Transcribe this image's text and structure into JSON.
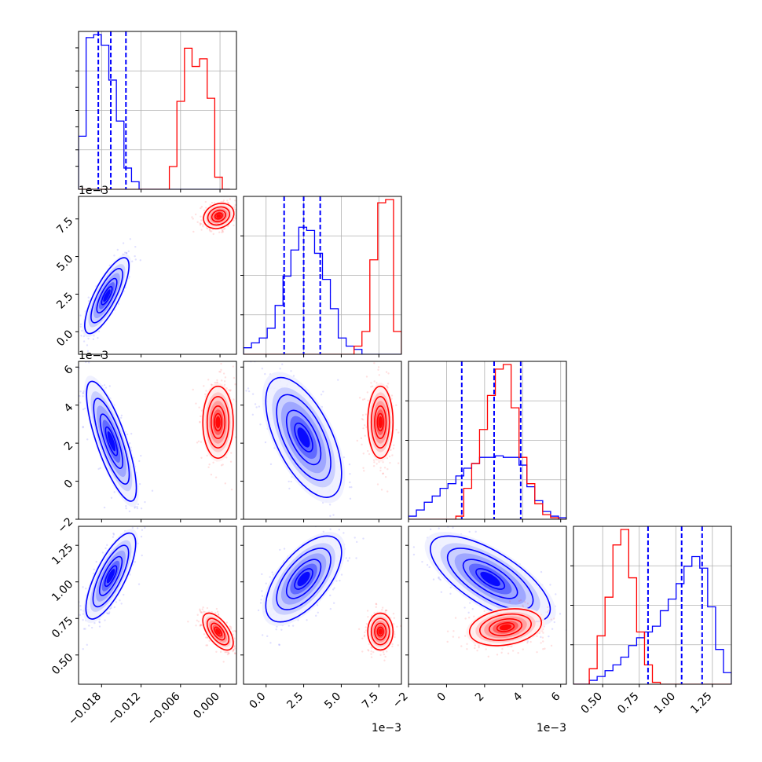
{
  "chart_data": {
    "type": "corner",
    "colors": {
      "blue": "#0000ff",
      "red": "#ff0000"
    },
    "grid": true,
    "parameters": [
      {
        "index": 0,
        "range": [
          -0.0215,
          0.0025
        ],
        "ticks": [
          -0.018,
          -0.012,
          -0.006,
          0.0
        ],
        "tick_labels": [
          "−0.018",
          "−0.012",
          "−0.006",
          "0.000"
        ],
        "offset_label": ""
      },
      {
        "index": 1,
        "range": [
          -0.0015,
          0.009
        ],
        "ticks": [
          0.0,
          0.0025,
          0.005,
          0.0075
        ],
        "tick_labels": [
          "0.0",
          "2.5",
          "5.0",
          "7.5"
        ],
        "offset_label": "1e−3"
      },
      {
        "index": 2,
        "range": [
          -0.002,
          0.0063
        ],
        "ticks": [
          -0.002,
          0.0,
          0.002,
          0.004,
          0.006
        ],
        "tick_labels": [
          "−2",
          "0",
          "2",
          "4",
          "6"
        ],
        "offset_label": "1e−3"
      },
      {
        "index": 3,
        "range": [
          0.3,
          1.38
        ],
        "ticks": [
          0.5,
          0.75,
          1.0,
          1.25
        ],
        "tick_labels": [
          "0.50",
          "0.75",
          "1.00",
          "1.25"
        ],
        "offset_label": ""
      }
    ],
    "histograms": [
      {
        "param": 0,
        "blue": {
          "edges_start": -0.0215,
          "bin_width": 0.00115,
          "counts": [
            0.35,
            1.0,
            1.02,
            0.95,
            0.72,
            0.45,
            0.14,
            0.05,
            0,
            0,
            0,
            0,
            0,
            0,
            0,
            0,
            0,
            0,
            0,
            0
          ]
        },
        "red": {
          "edges_start": -0.0215,
          "bin_width": 0.00115,
          "counts": [
            0,
            0,
            0,
            0,
            0,
            0,
            0,
            0,
            0,
            0,
            0,
            0,
            0.15,
            0.58,
            0.93,
            0.81,
            0.86,
            0.6,
            0.08,
            0
          ]
        },
        "quantile_lines": [
          -0.0185,
          -0.0166,
          -0.0143
        ]
      },
      {
        "param": 1,
        "blue": {
          "edges_start": -0.0015,
          "bin_width": 0.000525,
          "counts": [
            0.04,
            0.07,
            0.1,
            0.16,
            0.3,
            0.48,
            0.64,
            0.78,
            0.76,
            0.62,
            0.46,
            0.28,
            0.1,
            0.05,
            0.03,
            0,
            0,
            0,
            0,
            0
          ]
        },
        "red": {
          "edges_start": -0.0015,
          "bin_width": 0.000525,
          "counts": [
            0,
            0,
            0,
            0,
            0,
            0,
            0,
            0,
            0,
            0,
            0,
            0,
            0,
            0,
            0.05,
            0.14,
            0.58,
            0.93,
            0.95,
            0.14
          ]
        },
        "quantile_lines": [
          0.0012,
          0.0025,
          0.0036
        ]
      },
      {
        "param": 2,
        "blue": {
          "edges_start": -0.002,
          "bin_width": 0.000415,
          "counts": [
            0.02,
            0.06,
            0.11,
            0.15,
            0.2,
            0.23,
            0.28,
            0.33,
            0.36,
            0.4,
            0.4,
            0.41,
            0.4,
            0.4,
            0.35,
            0.21,
            0.12,
            0.05,
            0.02,
            0.01
          ]
        },
        "red": {
          "edges_start": -0.002,
          "bin_width": 0.000415,
          "counts": [
            0,
            0,
            0,
            0,
            0,
            0,
            0.02,
            0.2,
            0.36,
            0.58,
            0.8,
            0.97,
            1.0,
            0.72,
            0.4,
            0.23,
            0.1,
            0.03,
            0.01,
            0
          ]
        },
        "quantile_lines": [
          0.0008,
          0.0025,
          0.0039
        ]
      },
      {
        "param": 3,
        "blue": {
          "edges_start": 0.3,
          "bin_width": 0.054,
          "counts": [
            0,
            0,
            0.02,
            0.04,
            0.07,
            0.1,
            0.14,
            0.2,
            0.24,
            0.27,
            0.3,
            0.38,
            0.44,
            0.52,
            0.61,
            0.66,
            0.6,
            0.4,
            0.18,
            0.06
          ]
        },
        "red": {
          "edges_start": 0.3,
          "bin_width": 0.054,
          "counts": [
            0,
            0,
            0.08,
            0.25,
            0.45,
            0.72,
            0.8,
            0.55,
            0.27,
            0.1,
            0.01,
            0,
            0,
            0,
            0,
            0,
            0,
            0,
            0,
            0
          ]
        },
        "quantile_lines": [
          0.81,
          1.04,
          1.18
        ]
      }
    ],
    "samples": {
      "blue": [
        {
          "pair": [
            1,
            0
          ],
          "center": [
            -0.0172,
            0.0024
          ],
          "spread": [
            0.0016,
            0.0012
          ],
          "corr": 0.78
        },
        {
          "pair": [
            2,
            0
          ],
          "center": [
            -0.0165,
            0.0021
          ],
          "spread": [
            0.0018,
            0.0015
          ],
          "corr": -0.78
        },
        {
          "pair": [
            2,
            1
          ],
          "center": [
            0.0025,
            0.0023
          ],
          "spread": [
            0.0012,
            0.0015
          ],
          "corr": -0.6
        },
        {
          "pair": [
            3,
            0
          ],
          "center": [
            -0.0166,
            1.04
          ],
          "spread": [
            0.0018,
            0.14
          ],
          "corr": 0.75
        },
        {
          "pair": [
            3,
            1
          ],
          "center": [
            0.0025,
            1.02
          ],
          "spread": [
            0.0012,
            0.14
          ],
          "corr": 0.62
        },
        {
          "pair": [
            3,
            2
          ],
          "center": [
            0.0023,
            1.02
          ],
          "spread": [
            0.0015,
            0.14
          ],
          "corr": -0.7
        }
      ],
      "red": [
        {
          "pair": [
            1,
            0
          ],
          "center": [
            -0.0002,
            0.0077
          ],
          "spread": [
            0.0011,
            0.0004
          ],
          "corr": 0.2
        },
        {
          "pair": [
            2,
            0
          ],
          "center": [
            -0.0003,
            0.0031
          ],
          "spread": [
            0.0011,
            0.0009
          ],
          "corr": 0.0
        },
        {
          "pair": [
            2,
            1
          ],
          "center": [
            0.0076,
            0.0031
          ],
          "spread": [
            0.0004,
            0.0009
          ],
          "corr": 0.0
        },
        {
          "pair": [
            3,
            0
          ],
          "center": [
            -0.0003,
            0.66
          ],
          "spread": [
            0.0011,
            0.06
          ],
          "corr": -0.6
        },
        {
          "pair": [
            3,
            1
          ],
          "center": [
            0.0076,
            0.66
          ],
          "spread": [
            0.0004,
            0.06
          ],
          "corr": 0.0
        },
        {
          "pair": [
            3,
            2
          ],
          "center": [
            0.0031,
            0.69
          ],
          "spread": [
            0.0009,
            0.06
          ],
          "corr": 0.25
        }
      ]
    }
  }
}
